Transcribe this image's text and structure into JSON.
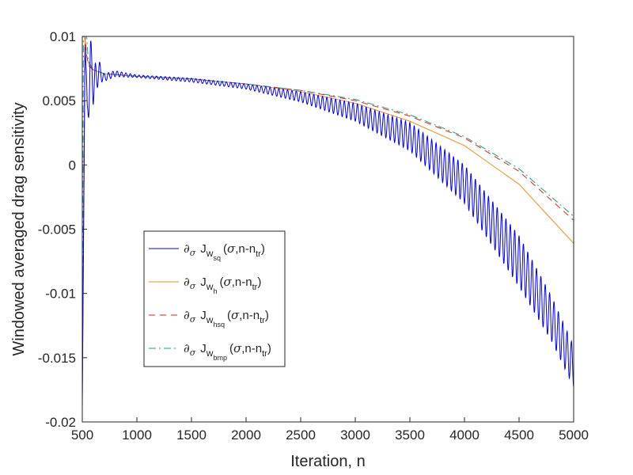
{
  "chart_data": {
    "type": "line",
    "xlabel": "Iteration, n",
    "ylabel": "Windowed averaged drag sensitivity",
    "xlim": [
      500,
      5000
    ],
    "ylim": [
      -0.02,
      0.01
    ],
    "x_ticks": [
      500,
      1000,
      1500,
      2000,
      2500,
      3000,
      3500,
      4000,
      4500,
      5000
    ],
    "y_ticks": [
      -0.02,
      -0.015,
      -0.01,
      -0.005,
      0,
      0.005,
      0.01
    ],
    "x_tick_labels": [
      "500",
      "1000",
      "1500",
      "2000",
      "2500",
      "3000",
      "3500",
      "4000",
      "4500",
      "5000"
    ],
    "y_tick_labels": [
      "-0.02",
      "-0.015",
      "-0.01",
      "-0.005",
      "0",
      "0.005",
      "0.01"
    ],
    "grid": false,
    "legend_position": "lower-left",
    "series": [
      {
        "name": "∂σ Jw_sq(σ,n-n_tr)",
        "legend_sub": "sq",
        "color": "#0000ff",
        "dash": "solid",
        "oscillating": true,
        "points": [
          [
            500,
            -0.019
          ],
          [
            525,
            0.01
          ],
          [
            545,
            0.0035
          ],
          [
            575,
            0.0082
          ],
          [
            600,
            0.0062
          ],
          [
            650,
            0.0073
          ],
          [
            700,
            0.0068
          ],
          [
            800,
            0.0071
          ],
          [
            1000,
            0.0069
          ],
          [
            1500,
            0.0066
          ],
          [
            2000,
            0.0061
          ],
          [
            2500,
            0.0053
          ],
          [
            3000,
            0.0041
          ],
          [
            3500,
            0.0022
          ],
          [
            4000,
            -0.0015
          ],
          [
            4500,
            -0.0075
          ],
          [
            4800,
            -0.012
          ],
          [
            5000,
            -0.0157
          ]
        ],
        "amplitude": [
          [
            500,
            0.0
          ],
          [
            560,
            0.002
          ],
          [
            700,
            0.0003
          ],
          [
            1000,
            0.0001
          ],
          [
            2000,
            0.0002
          ],
          [
            2500,
            0.0004
          ],
          [
            3000,
            0.0007
          ],
          [
            3500,
            0.0011
          ],
          [
            4000,
            0.0015
          ],
          [
            4500,
            0.002
          ],
          [
            5000,
            0.0016
          ]
        ]
      },
      {
        "name": "∂σ Jw_h(σ,n-n_tr)",
        "legend_sub": "h",
        "color": "#e8911e",
        "dash": "solid",
        "oscillating": false,
        "points": [
          [
            500,
            -0.018
          ],
          [
            525,
            0.01
          ],
          [
            540,
            0.0085
          ],
          [
            560,
            0.0078
          ],
          [
            600,
            0.0074
          ],
          [
            700,
            0.0071
          ],
          [
            1000,
            0.0069
          ],
          [
            1500,
            0.0067
          ],
          [
            2000,
            0.0063
          ],
          [
            2500,
            0.0057
          ],
          [
            3000,
            0.0048
          ],
          [
            3500,
            0.0034
          ],
          [
            4000,
            0.0015
          ],
          [
            4500,
            -0.0015
          ],
          [
            5000,
            -0.0061
          ]
        ]
      },
      {
        "name": "∂σ Jw_hsq(σ,n-n_tr)",
        "legend_sub": "hsq",
        "color": "#d9251b",
        "dash": "8,6",
        "oscillating": false,
        "points": [
          [
            500,
            -0.017
          ],
          [
            525,
            0.01
          ],
          [
            540,
            0.0085
          ],
          [
            560,
            0.0077
          ],
          [
            600,
            0.0074
          ],
          [
            700,
            0.0071
          ],
          [
            1000,
            0.0069
          ],
          [
            1500,
            0.0067
          ],
          [
            2000,
            0.0063
          ],
          [
            2500,
            0.0058
          ],
          [
            3000,
            0.005
          ],
          [
            3500,
            0.0038
          ],
          [
            4000,
            0.0021
          ],
          [
            4500,
            -0.0005
          ],
          [
            5000,
            -0.0043
          ]
        ]
      },
      {
        "name": "∂σ Jw_bmp(σ,n-n_tr)",
        "legend_sub": "bmp",
        "color": "#199e7a",
        "dash": "9,4,2,4",
        "oscillating": false,
        "points": [
          [
            500,
            -0.017
          ],
          [
            510,
            0.01
          ],
          [
            540,
            0.01
          ],
          [
            555,
            0.0081
          ],
          [
            600,
            0.0074
          ],
          [
            700,
            0.0071
          ],
          [
            1000,
            0.0069
          ],
          [
            1500,
            0.0067
          ],
          [
            2000,
            0.0063
          ],
          [
            2500,
            0.0058
          ],
          [
            3000,
            0.0051
          ],
          [
            3500,
            0.0039
          ],
          [
            4000,
            0.0022
          ],
          [
            4500,
            -0.0003
          ],
          [
            5000,
            -0.004
          ]
        ]
      }
    ]
  }
}
